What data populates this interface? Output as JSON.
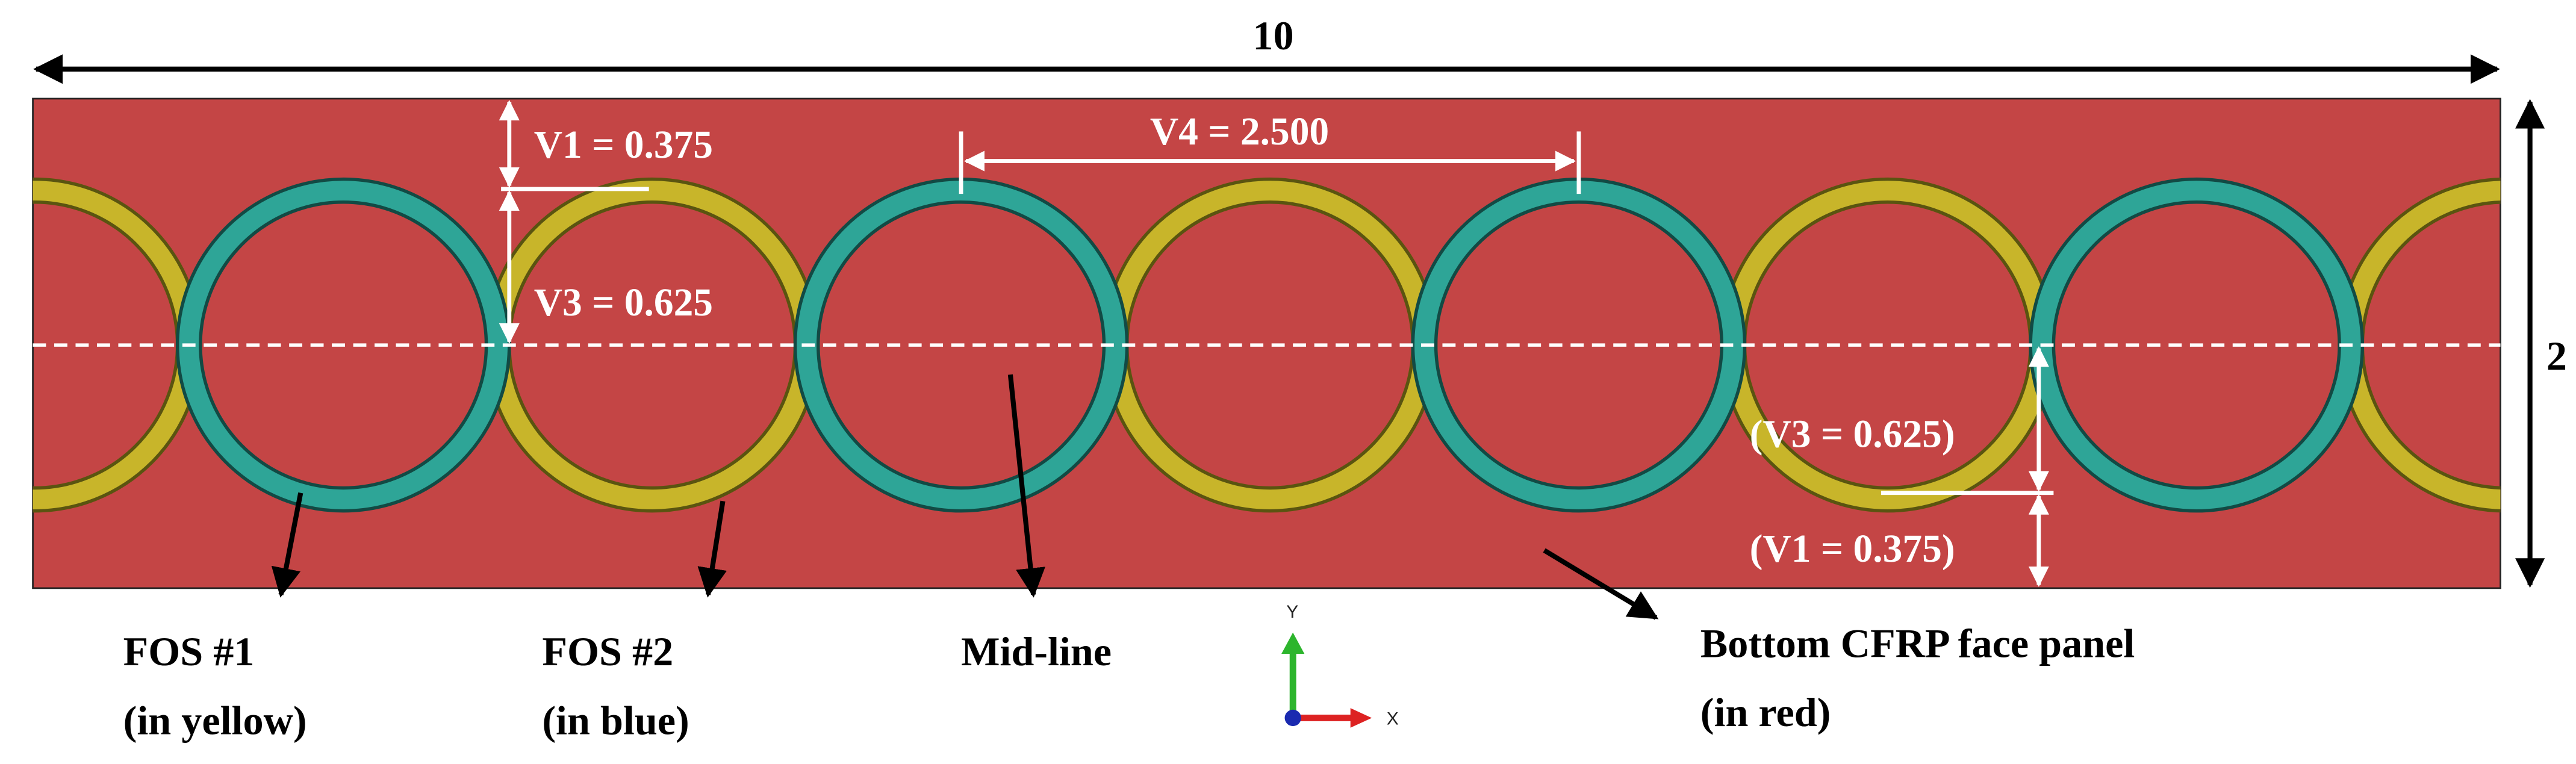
{
  "dimensions": {
    "length": "10",
    "height": "2",
    "v1_top": "V1 = 0.375",
    "v3_top": "V3 = 0.625",
    "v4": "V4 = 2.500",
    "v3_bottom": "(V3 = 0.625)",
    "v1_bottom": "(V1 = 0.375)"
  },
  "callouts": [
    {
      "label": "FOS #1",
      "note": "(in yellow)"
    },
    {
      "label": "FOS #2",
      "note": "(in blue)"
    },
    {
      "label": "Mid-line"
    },
    {
      "label": "Bottom CFRP face panel",
      "note": "(in red)"
    }
  ],
  "axes": {
    "y": "Y",
    "x": "X"
  }
}
